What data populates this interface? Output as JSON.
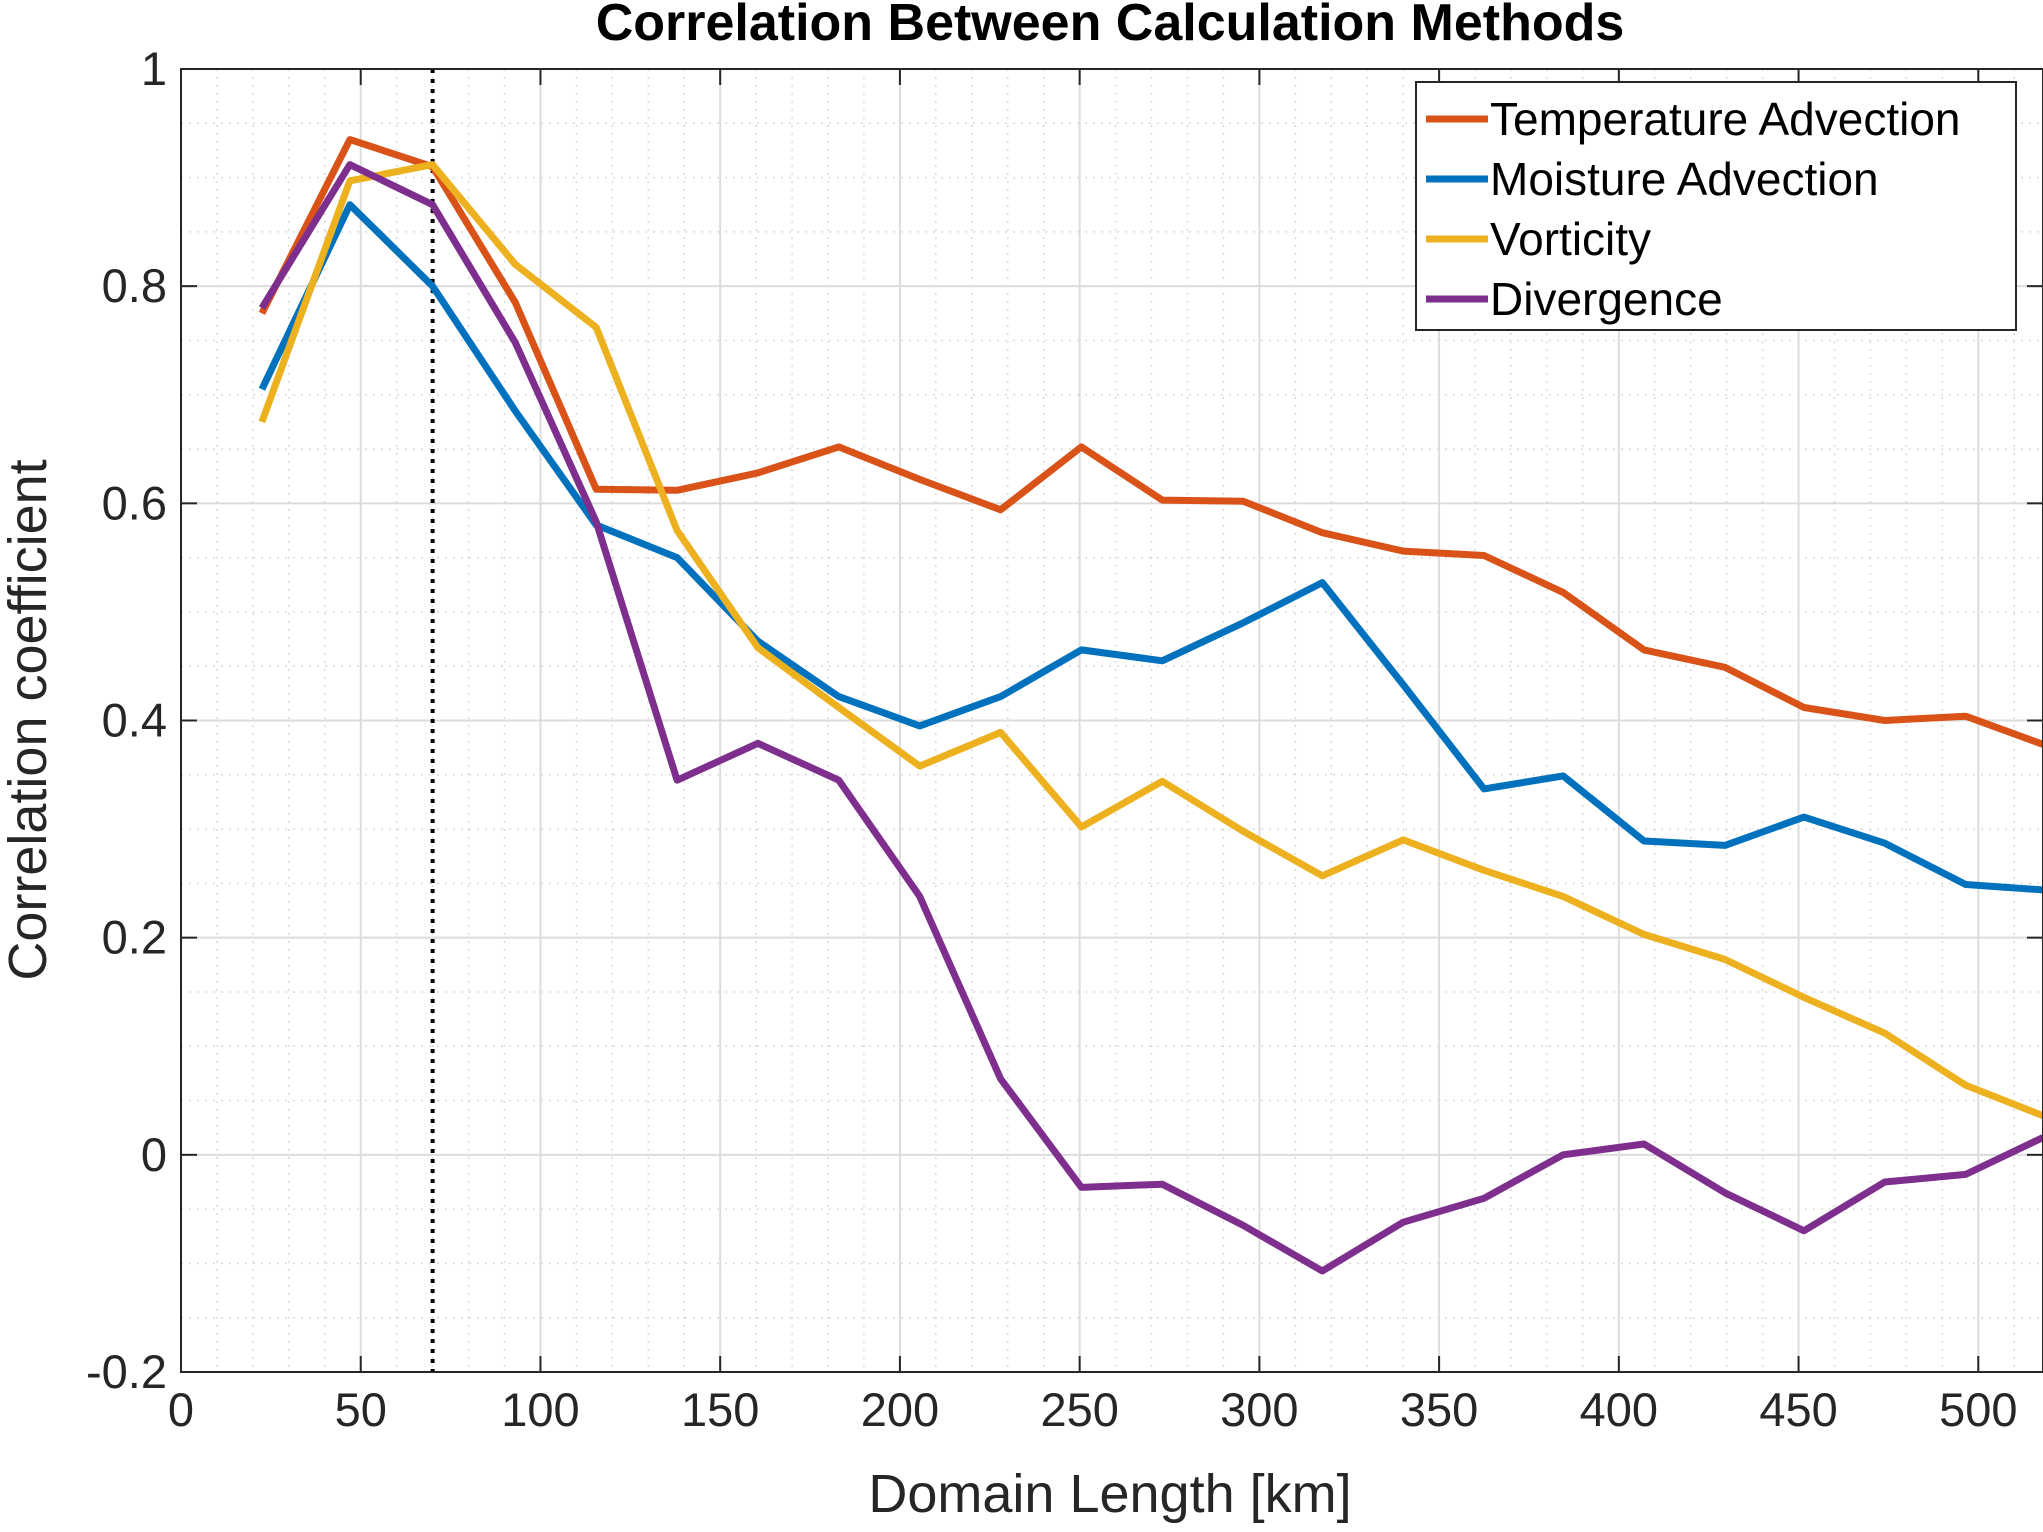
{
  "chart_data": {
    "type": "line",
    "title": "Correlation Between Calculation Methods",
    "xlabel": "Domain Length [km]",
    "ylabel": "Correlation coefficient",
    "xlim": [
      0,
      518
    ],
    "ylim": [
      -0.2,
      1
    ],
    "xticks": [
      0,
      50,
      100,
      150,
      200,
      250,
      300,
      350,
      400,
      450,
      500
    ],
    "yticks": [
      -0.2,
      0,
      0.2,
      0.4,
      0.6,
      0.8,
      1
    ],
    "ytick_labels": [
      "-0.2",
      "0",
      "0.2",
      "0.4",
      "0.6",
      "0.8",
      "1"
    ],
    "xtick_labels": [
      "0",
      "50",
      "100",
      "150",
      "200",
      "250",
      "300",
      "350",
      "400",
      "450",
      "500"
    ],
    "grid": true,
    "minor_grid": true,
    "legend_position": "top-right",
    "vertical_reference_line": {
      "x": 70,
      "style": "dotted",
      "color": "#000000"
    },
    "x": [
      22.5,
      47,
      70,
      93,
      115.5,
      138,
      160.5,
      183,
      205.5,
      228,
      250.5,
      273,
      295.5,
      317.5,
      340,
      362.5,
      384.5,
      407,
      429.5,
      451.5,
      474,
      496.5,
      518
    ],
    "series": [
      {
        "name": "Temperature Advection",
        "color": "#D95319",
        "values": [
          0.775,
          0.935,
          0.91,
          0.785,
          0.613,
          0.612,
          0.628,
          0.652,
          0.622,
          0.594,
          0.652,
          0.603,
          0.602,
          0.573,
          0.556,
          0.552,
          0.518,
          0.465,
          0.449,
          0.412,
          0.4,
          0.404,
          0.378
        ]
      },
      {
        "name": "Moisture Advection",
        "color": "#0072BD",
        "values": [
          0.705,
          0.875,
          0.8,
          0.685,
          0.58,
          0.55,
          0.473,
          0.422,
          0.395,
          0.422,
          0.465,
          0.455,
          0.49,
          0.527,
          0.433,
          0.337,
          0.349,
          0.289,
          0.285,
          0.311,
          0.287,
          0.249,
          0.244
        ]
      },
      {
        "name": "Vorticity",
        "color": "#EDB120",
        "values": [
          0.675,
          0.897,
          0.912,
          0.82,
          0.762,
          0.575,
          0.467,
          0.412,
          0.358,
          0.389,
          0.302,
          0.344,
          0.298,
          0.257,
          0.29,
          0.262,
          0.238,
          0.203,
          0.18,
          0.145,
          0.112,
          0.064,
          0.036
        ]
      },
      {
        "name": "Divergence",
        "color": "#7E2F8E",
        "values": [
          0.78,
          0.912,
          0.875,
          0.748,
          0.583,
          0.345,
          0.379,
          0.345,
          0.238,
          0.07,
          -0.03,
          -0.027,
          -0.065,
          -0.107,
          -0.062,
          -0.04,
          0.0,
          0.01,
          -0.035,
          -0.07,
          -0.025,
          -0.018,
          0.016
        ]
      }
    ]
  }
}
